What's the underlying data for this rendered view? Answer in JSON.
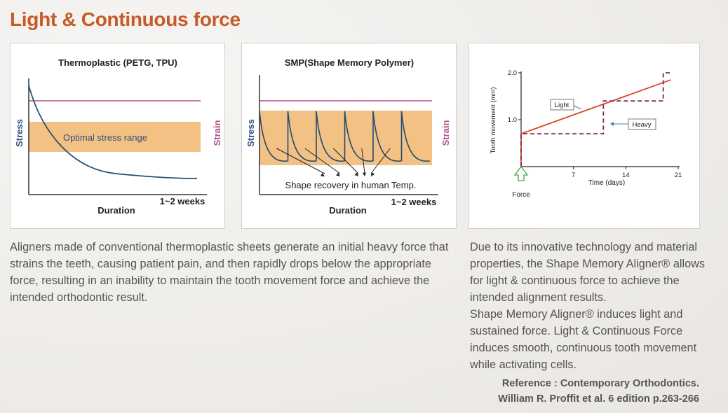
{
  "page": {
    "title": "Light & Continuous force",
    "description_left": "Aligners made of conventional thermoplastic sheets generate an initial heavy force that strains the teeth, causing patient pain, and then rapidly drops below the appropriate force, resulting in an inability to maintain the tooth movement force and achieve the intended orthodontic result.",
    "description_right": [
      "Due to its innovative technology and material properties, the Shape Memory Aligner® allows for light & continuous force to achieve the intended alignment results.",
      "Shape Memory Aligner® induces light and sustained force. Light & Continuous Force induces smooth, continuous tooth move­ment while activating cells."
    ],
    "reference": [
      "Reference : Contemporary Orthodontics.",
      "William R. Proffit et al. 6 edition p.263-266"
    ]
  },
  "colors": {
    "title": "#c65a28",
    "band": "#f2c183",
    "curve": "#1f4e73",
    "strain_line": "#b34f8a",
    "stress_label": "#2f4f7f",
    "strain_label": "#b34f8a",
    "light_line": "#e0442c",
    "heavy_line": "#7a2b4e",
    "force_arrow": "#4ea24e"
  },
  "chart_data": [
    {
      "type": "line",
      "title": "Thermoplastic (PETG, TPU)",
      "ylabel": "Stress",
      "ylabel_right": "Strain",
      "xlabel": "Duration",
      "x_annotation": "1~2 weeks",
      "band_label": "Optimal stress range",
      "series": [
        {
          "values": [
            1.0,
            0.6,
            0.35,
            0.18,
            0.08,
            0.03,
            0.01
          ]
        }
      ]
    },
    {
      "type": "line",
      "title": "SMP(Shape Memory Polymer)",
      "ylabel": "Stress",
      "ylabel_right": "Strain",
      "xlabel": "Duration",
      "x_annotation": "1~2 weeks",
      "annotation": "Shape recovery in human Temp.",
      "cycles": 6
    },
    {
      "type": "line",
      "xlabel": "Time (days)",
      "ylabel": "Tooth movement (mm)",
      "x_ticks": [
        7,
        14,
        21
      ],
      "y_ticks": [
        "1.0",
        "2.0"
      ],
      "xlim": [
        0,
        21
      ],
      "ylim": [
        0,
        2.0
      ],
      "arrow_label": "Force",
      "series": [
        {
          "name": "Light",
          "x": [
            0,
            0,
            20
          ],
          "y": [
            0,
            0.7,
            1.85
          ]
        },
        {
          "name": "Heavy",
          "x": [
            0,
            0,
            11,
            11,
            19,
            19,
            20
          ],
          "y": [
            0,
            0.7,
            0.7,
            1.4,
            1.4,
            2.0,
            2.0
          ]
        }
      ]
    }
  ]
}
